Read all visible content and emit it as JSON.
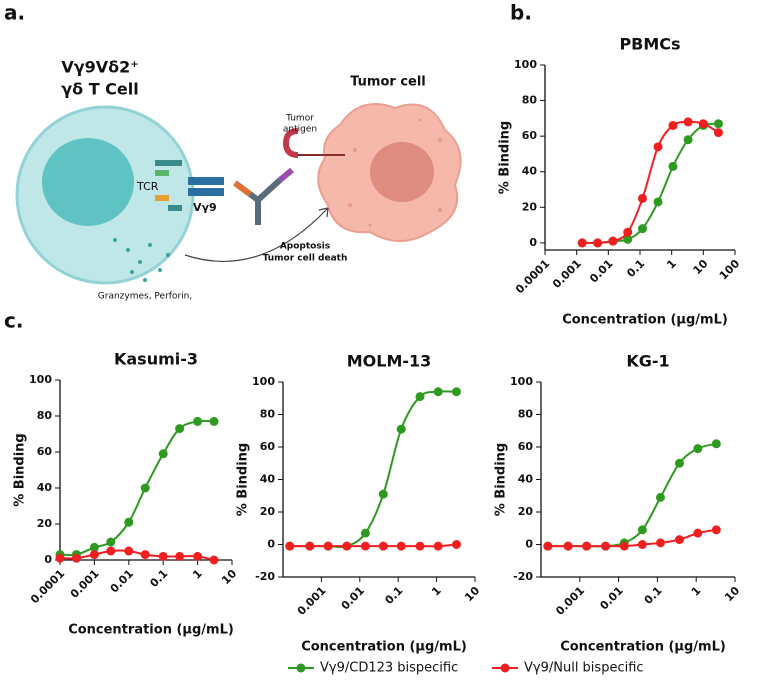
{
  "panels": {
    "a": "a.",
    "b": "b.",
    "c": "c."
  },
  "diagram": {
    "t_cell_title_1": "Vγ9Vδ2⁺",
    "t_cell_title_2": "γδ T Cell",
    "tumor_cell": "Tumor cell",
    "tumor_antigen_1": "Tumor",
    "tumor_antigen_2": "antigen",
    "tcr": "TCR",
    "vg9": "Vγ9",
    "apoptosis": "Apoptosis",
    "tumor_cell_death": "Tumor cell death",
    "granzymes": "Granzymes, Perforin,"
  },
  "chart_data": [
    {
      "type": "line",
      "title": "PBMCs",
      "x_label": "Concentration (µg/mL)",
      "y_label": "% Binding",
      "log_x": true,
      "xlim": [
        0.0001,
        100
      ],
      "xticks": [
        0.0001,
        0.001,
        0.01,
        0.1,
        1,
        10,
        100
      ],
      "ylim": [
        -4,
        100
      ],
      "yticks": [
        0,
        20,
        40,
        60,
        80,
        100
      ],
      "x": [
        0.0015,
        0.0046,
        0.014,
        0.041,
        0.12,
        0.37,
        1.1,
        3.3,
        10,
        30
      ],
      "series": [
        {
          "name": "Vγ9/CD123 bispecific",
          "color": "#2e9a1f",
          "values": [
            0,
            0,
            1,
            2,
            8,
            23,
            43,
            58,
            66,
            67
          ]
        },
        {
          "name": "Vγ9/Null bispecific",
          "color": "#f02020",
          "values": [
            0,
            0,
            1,
            6,
            25,
            54,
            66,
            68,
            67,
            62
          ]
        }
      ]
    },
    {
      "type": "line",
      "title": "Kasumi-3",
      "x_label": "Concentration (µg/mL)",
      "y_label": "% Binding",
      "log_x": true,
      "xlim": [
        0.0001,
        10
      ],
      "xticks": [
        0.0001,
        0.001,
        0.01,
        0.1,
        1,
        10
      ],
      "ylim": [
        0,
        100
      ],
      "yticks": [
        0,
        20,
        40,
        60,
        80,
        100
      ],
      "x": [
        0.0001,
        0.0003,
        0.001,
        0.003,
        0.01,
        0.03,
        0.1,
        0.3,
        1,
        3
      ],
      "series": [
        {
          "name": "Vγ9/CD123 bispecific",
          "color": "#2e9a1f",
          "values": [
            3,
            3,
            7,
            10,
            21,
            40,
            59,
            73,
            77,
            77
          ]
        },
        {
          "name": "Vγ9/Null bispecific",
          "color": "#f02020",
          "values": [
            1,
            1,
            3,
            5,
            5,
            3,
            2,
            2,
            2,
            0
          ]
        }
      ]
    },
    {
      "type": "line",
      "title": "MOLM-13",
      "x_label": "Concentration (µg/mL)",
      "y_label": "% Binding",
      "log_x": true,
      "xlim": [
        0.0001,
        10
      ],
      "xticks": [
        0.001,
        0.01,
        0.1,
        1,
        10
      ],
      "ylim": [
        -20,
        100
      ],
      "yticks": [
        -20,
        0,
        20,
        40,
        60,
        80,
        100
      ],
      "x": [
        0.00015,
        0.0005,
        0.0015,
        0.0046,
        0.014,
        0.041,
        0.12,
        0.37,
        1.1,
        3.3
      ],
      "series": [
        {
          "name": "Vγ9/CD123 bispecific",
          "color": "#2e9a1f",
          "values": [
            -1,
            -1,
            -1,
            -1,
            7,
            31,
            71,
            91,
            94,
            94
          ]
        },
        {
          "name": "Vγ9/Null bispecific",
          "color": "#f02020",
          "values": [
            -1,
            -1,
            -1,
            -1,
            -1,
            -1,
            -1,
            -1,
            -1,
            0
          ]
        }
      ]
    },
    {
      "type": "line",
      "title": "KG-1",
      "x_label": "Concentration (µg/mL)",
      "y_label": "% Binding",
      "log_x": true,
      "xlim": [
        0.0001,
        10
      ],
      "xticks": [
        0.001,
        0.01,
        0.1,
        1,
        10
      ],
      "ylim": [
        -20,
        100
      ],
      "yticks": [
        -20,
        0,
        20,
        40,
        60,
        80,
        100
      ],
      "x": [
        0.00015,
        0.0005,
        0.0015,
        0.0046,
        0.014,
        0.041,
        0.12,
        0.37,
        1.1,
        3.3
      ],
      "series": [
        {
          "name": "Vγ9/CD123 bispecific",
          "color": "#2e9a1f",
          "values": [
            -1,
            -1,
            -1,
            -1,
            1,
            9,
            29,
            50,
            59,
            62
          ]
        },
        {
          "name": "Vγ9/Null bispecific",
          "color": "#f02020",
          "values": [
            -1,
            -1,
            -1,
            -1,
            -1,
            0,
            1,
            3,
            7,
            9
          ]
        }
      ]
    }
  ]
}
